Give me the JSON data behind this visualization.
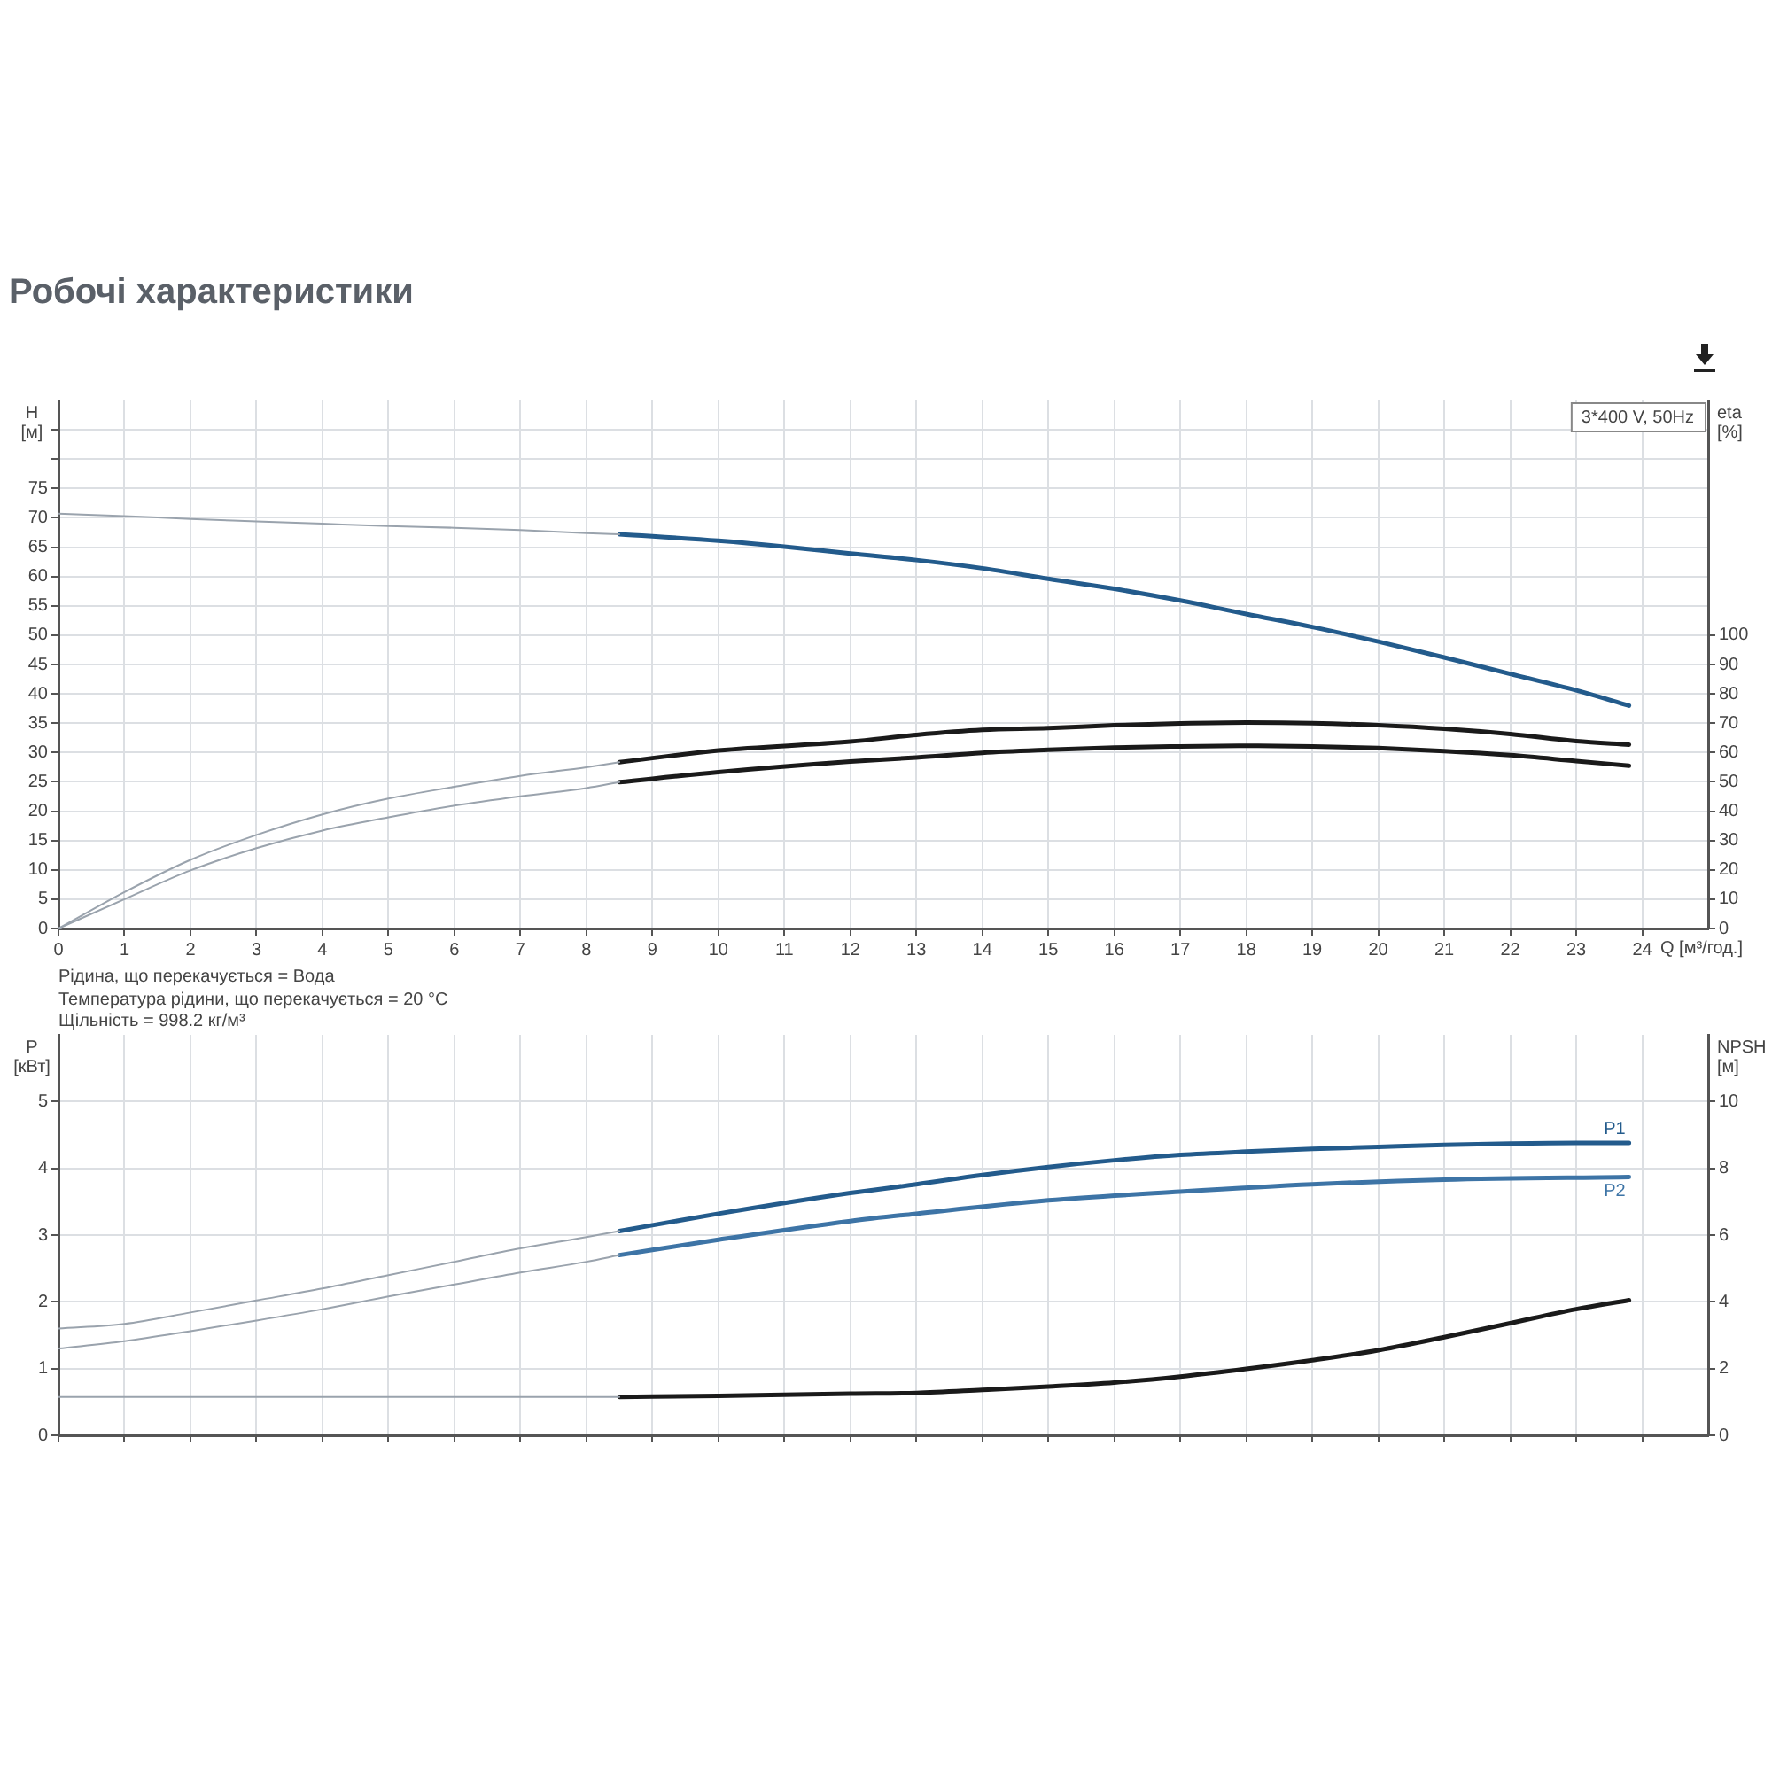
{
  "chart_data": [
    {
      "type": "line",
      "title": "Робочі характеристики",
      "xlabel": "Q [м³/год.]",
      "ylabel": "H [м]",
      "y2label": "eta [%]",
      "annotations": [
        "3*400 V, 50Hz",
        "Рідина, що перекачується = Вода",
        "Температура рідини, що перекачується = 20 °C",
        "Щільність = 998.2 кг/м³"
      ],
      "xlim": [
        0,
        25
      ],
      "xticks": [
        0,
        1,
        2,
        3,
        4,
        5,
        6,
        7,
        8,
        9,
        10,
        11,
        12,
        13,
        14,
        15,
        16,
        17,
        18,
        19,
        20,
        21,
        22,
        23,
        24
      ],
      "ylim": [
        0,
        90
      ],
      "yticks": [
        0,
        5,
        10,
        15,
        20,
        25,
        30,
        35,
        40,
        45,
        50,
        55,
        60,
        65,
        70,
        75,
        {
          "value": 80,
          "label": null
        },
        {
          "value": 85,
          "label": null
        }
      ],
      "y2lim": [
        0,
        180
      ],
      "y2ticks": [
        0,
        10,
        20,
        30,
        40,
        50,
        60,
        70,
        80,
        90,
        100
      ],
      "grid": true,
      "legend": false,
      "marker": "none",
      "series": [
        {
          "color": "#9aa3ad",
          "x": [
            0,
            1,
            2,
            3,
            4,
            5,
            6,
            7,
            8,
            8.5
          ],
          "values": [
            70.7,
            70.3,
            69.8,
            69.4,
            69,
            68.6,
            68.3,
            67.9,
            67.4,
            67.2
          ]
        },
        {
          "color": "#235b8c",
          "x": [
            8.5,
            10,
            11,
            12,
            13,
            14,
            15,
            16,
            17,
            18,
            19,
            20,
            21,
            22,
            23,
            23.8
          ],
          "values": [
            67.2,
            66.1,
            65.1,
            63.9,
            62.8,
            61.4,
            59.6,
            57.9,
            55.9,
            53.6,
            51.4,
            48.9,
            46.2,
            43.4,
            40.6,
            38
          ]
        },
        {
          "color": "#9aa3ad",
          "axis": "y2",
          "x": [
            0,
            1,
            2,
            3,
            4,
            5,
            6,
            7,
            8,
            8.5
          ],
          "values": [
            0,
            12.4,
            23.4,
            31.9,
            38.9,
            44.3,
            48.3,
            52,
            55,
            56.7
          ]
        },
        {
          "color": "#1a1a1a",
          "axis": "y2",
          "x": [
            8.5,
            10,
            12,
            13,
            14,
            15,
            16,
            17,
            18,
            19,
            20,
            21,
            22,
            23,
            23.8
          ],
          "values": [
            56.7,
            60.7,
            63.7,
            66,
            67.7,
            68.3,
            69.3,
            69.9,
            70.2,
            70,
            69.3,
            68.1,
            66.3,
            63.9,
            62.7
          ]
        },
        {
          "color": "#9aa3ad",
          "axis": "y2",
          "x": [
            0,
            1,
            2,
            3,
            4,
            5,
            6,
            7,
            8,
            8.5
          ],
          "values": [
            0,
            10,
            19.8,
            27.4,
            33.4,
            37.9,
            41.9,
            45.1,
            47.9,
            49.9
          ]
        },
        {
          "color": "#1a1a1a",
          "axis": "y2",
          "x": [
            8.5,
            10,
            12,
            13,
            14,
            15,
            16,
            17,
            18,
            19,
            20,
            21,
            22,
            23,
            23.8
          ],
          "values": [
            49.9,
            53.3,
            56.9,
            58.3,
            59.9,
            60.9,
            61.7,
            62.1,
            62.3,
            62.1,
            61.5,
            60.5,
            59.1,
            57.1,
            55.5
          ]
        }
      ]
    },
    {
      "type": "line",
      "ylabel": "P [кВт]",
      "y2label": "NPSH [м]",
      "xlim": [
        0,
        25
      ],
      "xticks": [
        0,
        1,
        2,
        3,
        4,
        5,
        6,
        7,
        8,
        9,
        10,
        11,
        12,
        13,
        14,
        15,
        16,
        17,
        18,
        19,
        20,
        21,
        22,
        23,
        24
      ],
      "ylim": [
        0,
        6
      ],
      "yticks": [
        0,
        1,
        2,
        3,
        4,
        5
      ],
      "y2lim": [
        0,
        12
      ],
      "y2ticks": [
        0,
        2,
        4,
        6,
        8,
        10
      ],
      "grid": true,
      "legend": false,
      "marker": "none",
      "tick_labels": "y",
      "series": [
        {
          "color": "#9aa3ad",
          "x": [
            0,
            1,
            2,
            3,
            4,
            5,
            6,
            7,
            8,
            8.5
          ],
          "values": [
            1.6,
            1.67,
            1.84,
            2.02,
            2.2,
            2.4,
            2.6,
            2.8,
            2.97,
            3.06
          ]
        },
        {
          "name": "P1",
          "color": "#235b8c",
          "x": [
            8.5,
            10,
            12,
            13,
            14,
            15,
            16,
            17,
            18,
            19,
            20,
            21,
            22,
            23,
            23.8
          ],
          "values": [
            3.06,
            3.32,
            3.63,
            3.76,
            3.9,
            4.02,
            4.12,
            4.2,
            4.25,
            4.29,
            4.32,
            4.35,
            4.37,
            4.38,
            4.38
          ]
        },
        {
          "color": "#9aa3ad",
          "x": [
            0,
            1,
            2,
            3,
            4,
            5,
            6,
            7,
            8,
            8.5
          ],
          "values": [
            1.3,
            1.41,
            1.56,
            1.72,
            1.89,
            2.08,
            2.26,
            2.44,
            2.6,
            2.7
          ]
        },
        {
          "name": "P2",
          "color": "#3d74a6",
          "x": [
            8.5,
            10,
            12,
            13,
            15,
            17,
            19,
            21,
            23.8
          ],
          "values": [
            2.7,
            2.93,
            3.21,
            3.32,
            3.52,
            3.65,
            3.76,
            3.83,
            3.87
          ]
        },
        {
          "color": "#9aa3ad",
          "axis": "y2",
          "x": [
            0,
            2,
            4,
            6,
            8,
            8.5
          ],
          "values": [
            1.15,
            1.15,
            1.15,
            1.15,
            1.15,
            1.15
          ]
        },
        {
          "color": "#1a1a1a",
          "axis": "y2",
          "x": [
            8.5,
            10,
            12,
            13,
            14,
            15,
            16,
            17,
            18,
            19,
            20,
            21,
            22,
            23,
            23.8
          ],
          "values": [
            1.15,
            1.18,
            1.25,
            1.27,
            1.36,
            1.46,
            1.58,
            1.76,
            1.99,
            2.25,
            2.55,
            2.94,
            3.36,
            3.78,
            4.05
          ]
        }
      ]
    }
  ]
}
